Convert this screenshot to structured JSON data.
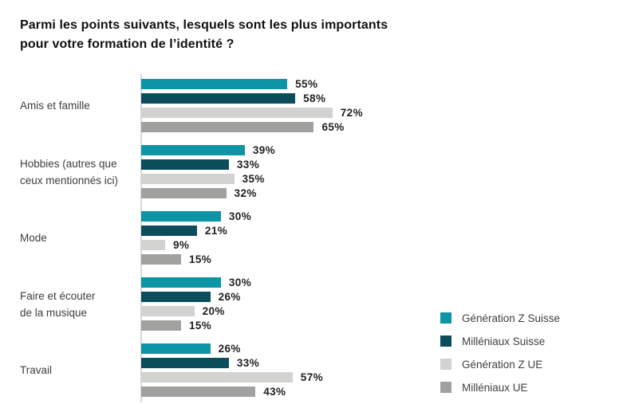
{
  "title_lines": [
    "Parmi les points suivants, lesquels sont les plus importants",
    "pour votre formation de l’identité ?"
  ],
  "chart_data": {
    "type": "bar",
    "orientation": "horizontal",
    "title": "Parmi les points suivants, lesquels sont les plus importants pour votre formation de l’identité ?",
    "categories": [
      "Amis et famille",
      "Hobbies (autres que ceux mentionnés ici)",
      "Mode",
      "Faire et écouter de la musique",
      "Travail"
    ],
    "categories_display": [
      [
        "Amis et famille"
      ],
      [
        "Hobbies (autres que",
        "ceux mentionnés ici)"
      ],
      [
        "Mode"
      ],
      [
        "Faire et écouter",
        "de la musique"
      ],
      [
        "Travail"
      ]
    ],
    "series": [
      {
        "name": "Génération Z Suisse",
        "color": "#0d95a5",
        "values": [
          55,
          39,
          30,
          30,
          26
        ]
      },
      {
        "name": "Milléniaux Suisse",
        "color": "#0b4d5b",
        "values": [
          58,
          33,
          21,
          26,
          33
        ]
      },
      {
        "name": "Génération Z UE",
        "color": "#d2d2d0",
        "values": [
          72,
          35,
          9,
          20,
          57
        ]
      },
      {
        "name": "Milléniaux UE",
        "color": "#a1a19f",
        "values": [
          65,
          32,
          15,
          15,
          43
        ]
      }
    ],
    "value_suffix": "%",
    "data_labels": true,
    "x_axis_visible": false,
    "value_range": [
      0,
      100
    ],
    "grid": false,
    "legend_position": "bottom-right",
    "axis_line_color": "#d8d8d6",
    "background_color": "#ffffff"
  }
}
